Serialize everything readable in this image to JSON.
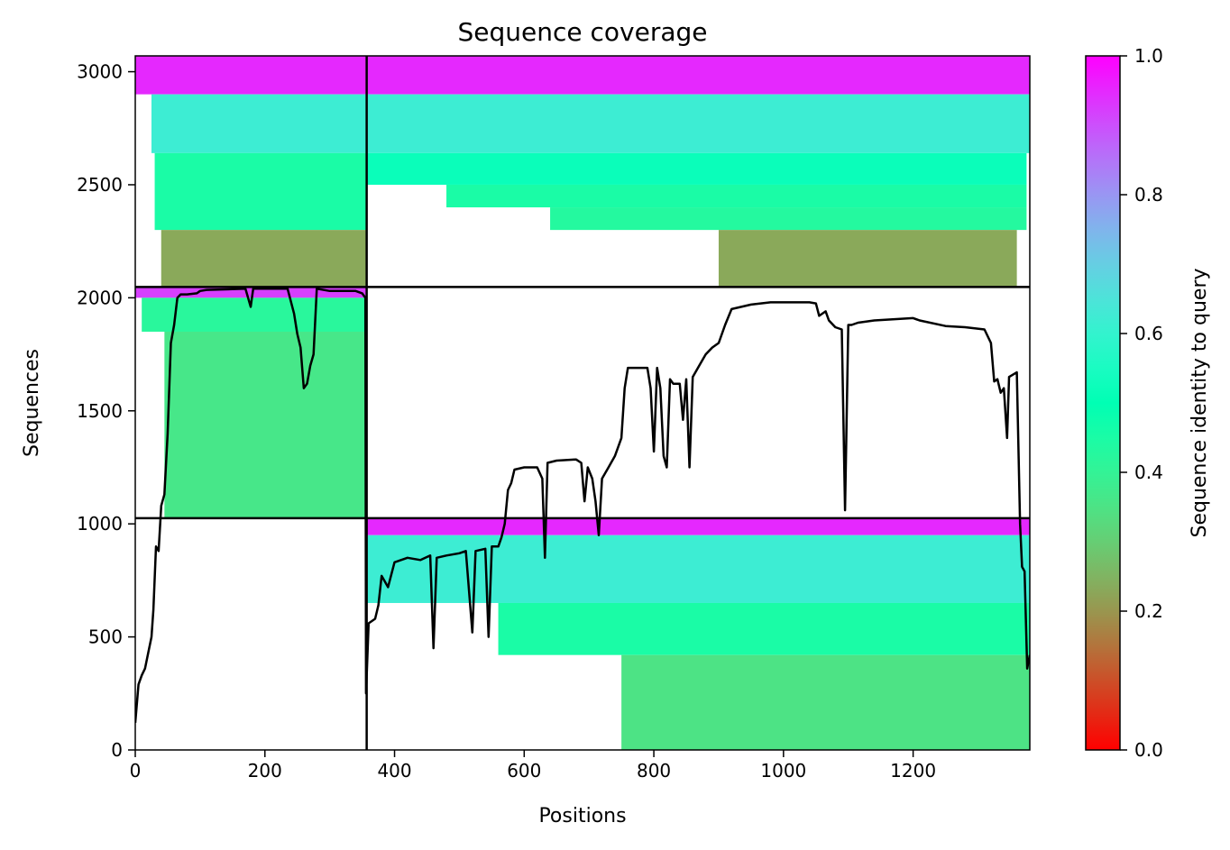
{
  "chart_data": {
    "type": "heatmap",
    "title": "Sequence coverage",
    "xlabel": "Positions",
    "ylabel": "Sequences",
    "xlim": [
      0,
      1380
    ],
    "ylim": [
      0,
      3070
    ],
    "x_ticks": [
      0,
      200,
      400,
      600,
      800,
      1000,
      1200
    ],
    "y_ticks": [
      0,
      500,
      1000,
      1500,
      2000,
      2500,
      3000
    ],
    "grid": false,
    "colormap": "rainbow_r",
    "colorbar": {
      "label": "Sequence identity to query",
      "range": [
        0,
        1
      ],
      "ticks": [
        "0.0",
        "0.2",
        "0.4",
        "0.6",
        "0.8",
        "1.0"
      ]
    },
    "block_separators": {
      "x": [
        357
      ],
      "y": [
        1025,
        2048
      ]
    },
    "blocks": [
      {
        "name": "block-top-left",
        "x_range": [
          0,
          357
        ],
        "y_range": [
          2048,
          3070
        ],
        "bands": [
          {
            "y": [
              2900,
              3070
            ],
            "identity": 0.95,
            "x": [
              0,
              357
            ]
          },
          {
            "y": [
              2640,
              2900
            ],
            "identity": 0.62,
            "x": [
              25,
              357
            ]
          },
          {
            "y": [
              2300,
              2640
            ],
            "identity": 0.45,
            "x": [
              30,
              357
            ]
          },
          {
            "y": [
              2048,
              2300
            ],
            "identity": 0.23,
            "x": [
              40,
              357
            ]
          }
        ]
      },
      {
        "name": "block-middle-left",
        "x_range": [
          0,
          357
        ],
        "y_range": [
          1025,
          2048
        ],
        "bands": [
          {
            "y": [
              2000,
              2048
            ],
            "identity": 0.92,
            "x": [
              0,
              357
            ]
          },
          {
            "y": [
              1850,
              2000
            ],
            "identity": 0.42,
            "x": [
              10,
              357
            ]
          },
          {
            "y": [
              1025,
              1850
            ],
            "identity": 0.36,
            "x": [
              45,
              357
            ]
          }
        ]
      },
      {
        "name": "block-top-right",
        "x_range": [
          357,
          1380
        ],
        "y_range": [
          2048,
          3070
        ],
        "bands": [
          {
            "y": [
              2900,
              3070
            ],
            "identity": 0.95,
            "x": [
              357,
              1380
            ]
          },
          {
            "y": [
              2640,
              2900
            ],
            "identity": 0.62,
            "x": [
              357,
              1380
            ]
          },
          {
            "y": [
              2500,
              2640
            ],
            "identity": 0.52,
            "x": [
              357,
              1375
            ]
          },
          {
            "y": [
              2400,
              2500
            ],
            "identity": 0.45,
            "x": [
              480,
              1375
            ]
          },
          {
            "y": [
              2300,
              2400
            ],
            "identity": 0.43,
            "x": [
              640,
              1375
            ]
          },
          {
            "y": [
              2050,
              2300
            ],
            "identity": 0.23,
            "x": [
              900,
              1360
            ]
          }
        ]
      },
      {
        "name": "block-bottom-right",
        "x_range": [
          357,
          1380
        ],
        "y_range": [
          0,
          1025
        ],
        "bands": [
          {
            "y": [
              950,
              1025
            ],
            "identity": 0.95,
            "x": [
              357,
              1380
            ]
          },
          {
            "y": [
              650,
              950
            ],
            "identity": 0.62,
            "x": [
              357,
              1380
            ]
          },
          {
            "y": [
              420,
              650
            ],
            "identity": 0.45,
            "x": [
              560,
              1380
            ]
          },
          {
            "y": [
              0,
              420
            ],
            "identity": 0.35,
            "x": [
              750,
              1380
            ]
          }
        ]
      }
    ],
    "coverage_line": {
      "name": "coverage",
      "color": "#000000",
      "points": [
        [
          0,
          120
        ],
        [
          5,
          290
        ],
        [
          10,
          330
        ],
        [
          15,
          360
        ],
        [
          20,
          430
        ],
        [
          25,
          500
        ],
        [
          28,
          620
        ],
        [
          32,
          900
        ],
        [
          36,
          880
        ],
        [
          40,
          1080
        ],
        [
          45,
          1130
        ],
        [
          50,
          1400
        ],
        [
          55,
          1800
        ],
        [
          60,
          1880
        ],
        [
          65,
          2000
        ],
        [
          70,
          2015
        ],
        [
          80,
          2015
        ],
        [
          95,
          2020
        ],
        [
          100,
          2030
        ],
        [
          110,
          2035
        ],
        [
          170,
          2040
        ],
        [
          178,
          1960
        ],
        [
          182,
          2040
        ],
        [
          200,
          2040
        ],
        [
          235,
          2040
        ],
        [
          245,
          1930
        ],
        [
          250,
          1840
        ],
        [
          255,
          1780
        ],
        [
          260,
          1600
        ],
        [
          265,
          1620
        ],
        [
          270,
          1700
        ],
        [
          275,
          1750
        ],
        [
          280,
          2040
        ],
        [
          300,
          2030
        ],
        [
          340,
          2030
        ],
        [
          350,
          2020
        ],
        [
          355,
          2000
        ],
        [
          356,
          250
        ],
        [
          360,
          560
        ],
        [
          370,
          580
        ],
        [
          375,
          640
        ],
        [
          380,
          770
        ],
        [
          390,
          720
        ],
        [
          400,
          830
        ],
        [
          420,
          850
        ],
        [
          440,
          840
        ],
        [
          455,
          860
        ],
        [
          460,
          450
        ],
        [
          465,
          850
        ],
        [
          480,
          860
        ],
        [
          500,
          870
        ],
        [
          510,
          880
        ],
        [
          520,
          520
        ],
        [
          525,
          880
        ],
        [
          540,
          890
        ],
        [
          545,
          500
        ],
        [
          550,
          900
        ],
        [
          560,
          900
        ],
        [
          565,
          940
        ],
        [
          570,
          1000
        ],
        [
          575,
          1150
        ],
        [
          580,
          1180
        ],
        [
          585,
          1240
        ],
        [
          600,
          1250
        ],
        [
          620,
          1250
        ],
        [
          628,
          1200
        ],
        [
          632,
          850
        ],
        [
          636,
          1270
        ],
        [
          650,
          1280
        ],
        [
          680,
          1285
        ],
        [
          688,
          1270
        ],
        [
          693,
          1100
        ],
        [
          698,
          1250
        ],
        [
          705,
          1200
        ],
        [
          710,
          1100
        ],
        [
          715,
          950
        ],
        [
          720,
          1200
        ],
        [
          730,
          1250
        ],
        [
          740,
          1300
        ],
        [
          750,
          1380
        ],
        [
          755,
          1600
        ],
        [
          760,
          1690
        ],
        [
          790,
          1690
        ],
        [
          795,
          1600
        ],
        [
          800,
          1320
        ],
        [
          805,
          1690
        ],
        [
          810,
          1600
        ],
        [
          815,
          1300
        ],
        [
          820,
          1250
        ],
        [
          825,
          1640
        ],
        [
          830,
          1620
        ],
        [
          840,
          1620
        ],
        [
          845,
          1460
        ],
        [
          850,
          1640
        ],
        [
          855,
          1250
        ],
        [
          860,
          1650
        ],
        [
          870,
          1700
        ],
        [
          880,
          1750
        ],
        [
          890,
          1780
        ],
        [
          900,
          1800
        ],
        [
          910,
          1880
        ],
        [
          920,
          1950
        ],
        [
          950,
          1970
        ],
        [
          980,
          1980
        ],
        [
          1040,
          1980
        ],
        [
          1050,
          1975
        ],
        [
          1055,
          1920
        ],
        [
          1065,
          1940
        ],
        [
          1070,
          1900
        ],
        [
          1080,
          1870
        ],
        [
          1090,
          1860
        ],
        [
          1095,
          1060
        ],
        [
          1100,
          1880
        ],
        [
          1105,
          1880
        ],
        [
          1115,
          1890
        ],
        [
          1140,
          1900
        ],
        [
          1200,
          1910
        ],
        [
          1210,
          1900
        ],
        [
          1250,
          1875
        ],
        [
          1280,
          1870
        ],
        [
          1310,
          1860
        ],
        [
          1320,
          1800
        ],
        [
          1325,
          1630
        ],
        [
          1330,
          1640
        ],
        [
          1335,
          1580
        ],
        [
          1340,
          1600
        ],
        [
          1345,
          1380
        ],
        [
          1348,
          1650
        ],
        [
          1360,
          1670
        ],
        [
          1365,
          1000
        ],
        [
          1368,
          810
        ],
        [
          1372,
          790
        ],
        [
          1376,
          360
        ],
        [
          1380,
          420
        ]
      ]
    }
  }
}
